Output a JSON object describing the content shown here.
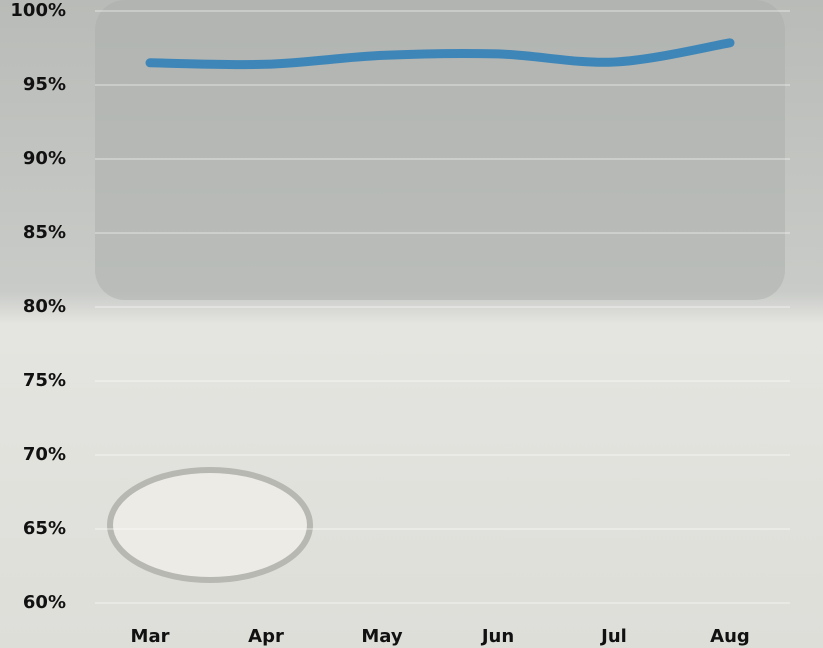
{
  "chart_data": {
    "type": "line",
    "categories": [
      "Mar",
      "Apr",
      "May",
      "Jun",
      "Jul",
      "Aug"
    ],
    "series": [
      {
        "color": "#3f86b8",
        "values": [
          96.5,
          96.4,
          97.0,
          97.1,
          96.55,
          97.85
        ]
      }
    ],
    "ylim": [
      60,
      100
    ],
    "yticks": [
      {
        "value": 60,
        "label": "60%"
      },
      {
        "value": 65,
        "label": "65%"
      },
      {
        "value": 70,
        "label": "70%"
      },
      {
        "value": 75,
        "label": "75%"
      },
      {
        "value": 80,
        "label": "80%"
      },
      {
        "value": 85,
        "label": "85%"
      },
      {
        "value": 90,
        "label": "90%"
      },
      {
        "value": 95,
        "label": "95%"
      },
      {
        "value": 100,
        "label": "100%"
      }
    ],
    "grid": true
  }
}
